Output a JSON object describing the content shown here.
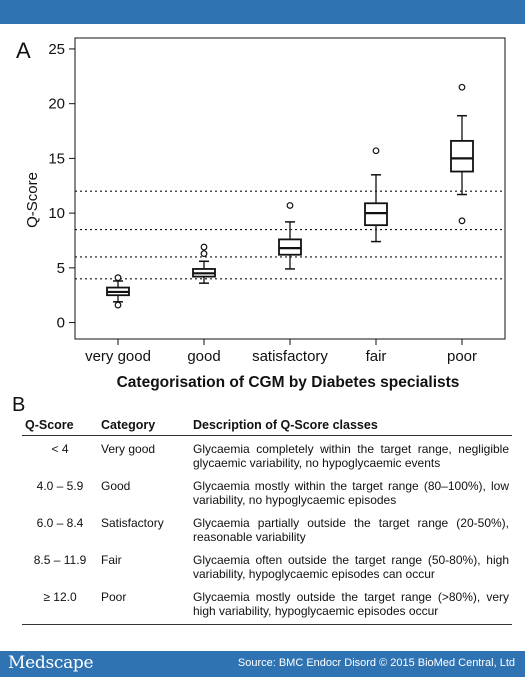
{
  "footer": {
    "brand": "Medscape",
    "source": "Source: BMC Endocr Disord © 2015 BioMed Central, Ltd"
  },
  "chart_data": {
    "type": "box",
    "panel_label": "A",
    "ylabel": "Q-Score",
    "xlabel": "Categorisation of CGM by Diabetes specialists",
    "ylim": [
      -1.5,
      26
    ],
    "yticks": [
      0,
      5,
      10,
      15,
      20,
      25
    ],
    "categories": [
      "very good",
      "good",
      "satisfactory",
      "fair",
      "poor"
    ],
    "boxes": [
      {
        "category": "very good",
        "min": 1.9,
        "q1": 2.5,
        "median": 2.8,
        "q3": 3.2,
        "max": 3.8,
        "outliers": [
          1.6,
          4.1
        ]
      },
      {
        "category": "good",
        "min": 3.6,
        "q1": 4.2,
        "median": 4.5,
        "q3": 4.9,
        "max": 5.6,
        "outliers": [
          6.3,
          6.9
        ]
      },
      {
        "category": "satisfactory",
        "min": 4.9,
        "q1": 6.2,
        "median": 6.8,
        "q3": 7.6,
        "max": 9.2,
        "outliers": [
          10.7
        ]
      },
      {
        "category": "fair",
        "min": 7.4,
        "q1": 8.9,
        "median": 10.0,
        "q3": 10.9,
        "max": 13.5,
        "outliers": [
          15.7
        ]
      },
      {
        "category": "poor",
        "min": 11.7,
        "q1": 13.8,
        "median": 15.0,
        "q3": 16.6,
        "max": 18.9,
        "outliers": [
          9.3,
          21.5
        ]
      }
    ],
    "reference_lines": [
      4.0,
      6.0,
      8.5,
      12.0
    ],
    "grid": false
  },
  "table": {
    "panel_label": "B",
    "headers": [
      "Q-Score",
      "Category",
      "Description of Q-Score classes"
    ],
    "rows": [
      {
        "qscore": "< 4",
        "category": "Very good",
        "description": "Glycaemia completely within the target range, negligible glycaemic variability, no hypoglycaemic events"
      },
      {
        "qscore": "4.0 – 5.9",
        "category": "Good",
        "description": "Glycaemia mostly within the target range (80–100%), low variability, no hypoglycaemic episodes"
      },
      {
        "qscore": "6.0 – 8.4",
        "category": "Satisfactory",
        "description": "Glycaemia partially outside the target range (20-50%), reasonable variability"
      },
      {
        "qscore": "8.5 – 11.9",
        "category": "Fair",
        "description": "Glycaemia often outside the target range (50-80%), high variability, hypoglycaemic episodes can occur"
      },
      {
        "qscore": "≥ 12.0",
        "category": "Poor",
        "description": "Glycaemia mostly outside the target range (>80%), very high variability, hypoglycaemic episodes occur"
      }
    ]
  },
  "colors": {
    "bar": "#2f73b3",
    "ink": "#111111"
  }
}
